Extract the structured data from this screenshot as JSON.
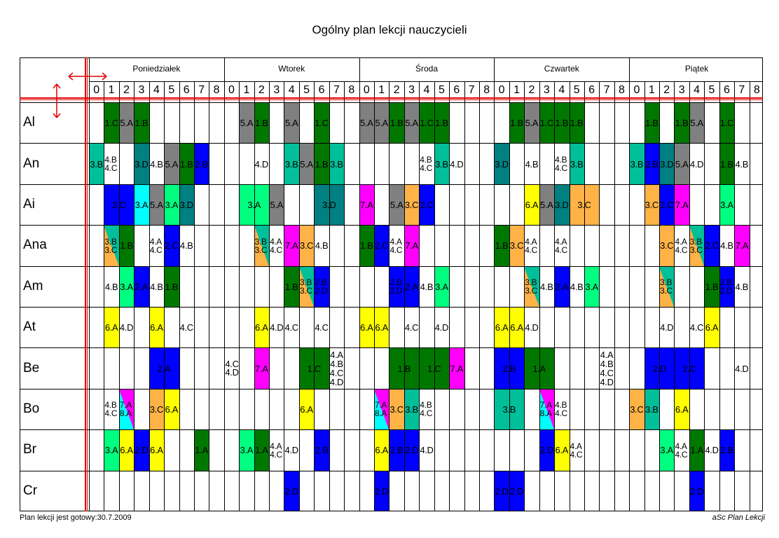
{
  "title": "Ogólny plan lekcji nauczycieli",
  "footer": {
    "left": "Plan lekcji jest gotowy:30.7.2009",
    "right": "aSc Plan Lekcji"
  },
  "days": [
    "Poniedziałek",
    "Wtorek",
    "Środa",
    "Czwartek",
    "Piątek"
  ],
  "periods": [
    "0",
    "1",
    "2",
    "3",
    "4",
    "5",
    "6",
    "7",
    "8"
  ],
  "colors": {
    "G": "#007800",
    "R": "#808080",
    "TL": "#00BF99",
    "T": "#008080",
    "B": "#0000FF",
    "C": "#00FFFF",
    "M": "#FF00FF",
    "Y": "#FFFF00",
    "O": "#FFB347",
    "L": "#00FF80"
  },
  "rows": [
    {
      "teacher": "Al",
      "cells": [
        {
          "s": 1,
          "c": "G",
          "t": "1.C"
        },
        {
          "s": 2,
          "c": "R",
          "t": "5.A"
        },
        {
          "s": 3,
          "c": "G",
          "t": "1.B"
        },
        {
          "s": 10,
          "c": "R",
          "t": "5.A"
        },
        {
          "s": 11,
          "c": "G",
          "t": "1.B"
        },
        {
          "s": 13,
          "c": "R",
          "t": "5.A"
        },
        {
          "s": 15,
          "c": "G",
          "t": "1.C"
        },
        {
          "s": 18,
          "c": "R",
          "t": "5.A"
        },
        {
          "s": 19,
          "c": "R",
          "t": "5.A"
        },
        {
          "s": 20,
          "c": "G",
          "t": "1.B"
        },
        {
          "s": 21,
          "c": "R",
          "t": "5.A"
        },
        {
          "s": 22,
          "c": "G",
          "t": "1.C"
        },
        {
          "s": 23,
          "c": "G",
          "t": "1.B"
        },
        {
          "s": 28,
          "c": "G",
          "t": "1.B"
        },
        {
          "s": 29,
          "c": "R",
          "t": "5.A"
        },
        {
          "s": 30,
          "c": "G",
          "t": "1.C"
        },
        {
          "s": 31,
          "c": "G",
          "t": "1.B"
        },
        {
          "s": 32,
          "c": "G",
          "t": "1.B"
        },
        {
          "s": 37,
          "c": "G",
          "t": "1.B"
        },
        {
          "s": 39,
          "c": "G",
          "t": "1.B"
        },
        {
          "s": 40,
          "c": "R",
          "t": "5.A"
        },
        {
          "s": 42,
          "c": "G",
          "t": "1.C"
        }
      ]
    },
    {
      "teacher": "An",
      "cells": [
        {
          "s": 0,
          "c": "TL",
          "t": "3.B"
        },
        {
          "s": 1,
          "c": "",
          "t": "4.B",
          "t2": "4.C"
        },
        {
          "s": 3,
          "c": "T",
          "t": "3.D"
        },
        {
          "s": 4,
          "c": "",
          "t": "4.B"
        },
        {
          "s": 5,
          "c": "R",
          "t": "5.A"
        },
        {
          "s": 6,
          "c": "G",
          "t": "1.B"
        },
        {
          "s": 7,
          "c": "B",
          "t": "2.B"
        },
        {
          "s": 11,
          "c": "",
          "t": "4.D"
        },
        {
          "s": 13,
          "c": "TL",
          "t": "3.B"
        },
        {
          "s": 14,
          "c": "R",
          "t": "5.A"
        },
        {
          "s": 15,
          "c": "G",
          "t": "1.B"
        },
        {
          "s": 16,
          "c": "TL",
          "t": "3.B"
        },
        {
          "s": 22,
          "c": "",
          "t": "4.B",
          "t2": "4.C"
        },
        {
          "s": 23,
          "c": "TL",
          "t": "3.B"
        },
        {
          "s": 24,
          "c": "",
          "t": "4.D"
        },
        {
          "s": 27,
          "c": "T",
          "t": "3.D"
        },
        {
          "s": 29,
          "c": "",
          "t": "4.B"
        },
        {
          "s": 31,
          "c": "",
          "t": "4.B",
          "t2": "4.C"
        },
        {
          "s": 32,
          "c": "TL",
          "t": "3.B"
        },
        {
          "s": 36,
          "c": "TL",
          "t": "3.B"
        },
        {
          "s": 37,
          "c": "B",
          "t": "2.B"
        },
        {
          "s": 38,
          "c": "T",
          "t": "3.D"
        },
        {
          "s": 39,
          "c": "R",
          "t": "5.A"
        },
        {
          "s": 40,
          "c": "",
          "t": "4.D"
        },
        {
          "s": 42,
          "c": "G",
          "t": "1.B"
        },
        {
          "s": 43,
          "c": "",
          "t": "4.B"
        }
      ]
    },
    {
      "teacher": "Ai",
      "cells": [
        {
          "s": 1,
          "w": 2,
          "c": "B",
          "t": "2.C"
        },
        {
          "s": 3,
          "c": "C",
          "t": "3.A"
        },
        {
          "s": 4,
          "c": "R",
          "t": "5.A"
        },
        {
          "s": 5,
          "c": "L",
          "t": "3.A"
        },
        {
          "s": 6,
          "c": "T",
          "t": "3.D"
        },
        {
          "s": 10,
          "w": 2,
          "c": "L",
          "t": "3.A"
        },
        {
          "s": 12,
          "c": "R",
          "t": "5.A"
        },
        {
          "s": 15,
          "w": 2,
          "c": "T",
          "t": "3.D"
        },
        {
          "s": 18,
          "c": "M",
          "t": "7.A"
        },
        {
          "s": 20,
          "c": "R",
          "t": "5.A"
        },
        {
          "s": 21,
          "c": "O",
          "t": "3.C"
        },
        {
          "s": 22,
          "c": "B",
          "t": "2.C"
        },
        {
          "s": 29,
          "c": "Y",
          "t": "6.A"
        },
        {
          "s": 30,
          "c": "R",
          "t": "5.A"
        },
        {
          "s": 31,
          "c": "T",
          "t": "3.D"
        },
        {
          "s": 32,
          "w": 2,
          "c": "O",
          "t": "3.C"
        },
        {
          "s": 37,
          "c": "O",
          "t": "3.C"
        },
        {
          "s": 38,
          "c": "B",
          "t": "2.C"
        },
        {
          "s": 39,
          "c": "M",
          "t": "7.A"
        },
        {
          "s": 42,
          "c": "L",
          "t": "3.A"
        }
      ]
    },
    {
      "teacher": "Ana",
      "cells": [
        {
          "s": 1,
          "c": "",
          "diag": [
            "TL",
            "O"
          ],
          "t": "3.B",
          "t2": "3.C"
        },
        {
          "s": 2,
          "c": "G",
          "t": "1.B"
        },
        {
          "s": 4,
          "c": "",
          "t": "4.A",
          "t2": "4.C"
        },
        {
          "s": 5,
          "c": "B",
          "t": "2.C"
        },
        {
          "s": 6,
          "c": "",
          "t": "4.B"
        },
        {
          "s": 11,
          "c": "",
          "diag": [
            "TL",
            "O"
          ],
          "t": "3.B",
          "t2": "3.C"
        },
        {
          "s": 12,
          "c": "",
          "t": "4.A",
          "t2": "4.C"
        },
        {
          "s": 13,
          "c": "M",
          "t": "7.A"
        },
        {
          "s": 14,
          "c": "O",
          "t": "3.C"
        },
        {
          "s": 15,
          "c": "",
          "t": "4.B"
        },
        {
          "s": 18,
          "c": "G",
          "t": "1.B"
        },
        {
          "s": 19,
          "c": "B",
          "t": "2.C"
        },
        {
          "s": 20,
          "c": "",
          "t": "4.A",
          "t2": "4.C"
        },
        {
          "s": 21,
          "c": "M",
          "t": "7.A"
        },
        {
          "s": 27,
          "c": "G",
          "t": "1.B"
        },
        {
          "s": 28,
          "c": "O",
          "t": "3.C"
        },
        {
          "s": 29,
          "c": "",
          "t": "4.A",
          "t2": "4.C"
        },
        {
          "s": 31,
          "c": "",
          "t": "4.A",
          "t2": "4.C"
        },
        {
          "s": 38,
          "c": "O",
          "t": "3.C"
        },
        {
          "s": 39,
          "c": "",
          "t": "4.A",
          "t2": "4.C"
        },
        {
          "s": 40,
          "c": "",
          "diag": [
            "TL",
            "O"
          ],
          "t": "3.B",
          "t2": "3.C"
        },
        {
          "s": 41,
          "c": "B",
          "t": "2.C"
        },
        {
          "s": 42,
          "c": "",
          "t": "4.B"
        },
        {
          "s": 43,
          "c": "M",
          "t": "7.A"
        }
      ]
    },
    {
      "teacher": "Am",
      "cells": [
        {
          "s": 1,
          "c": "",
          "t": "4.B"
        },
        {
          "s": 2,
          "c": "L",
          "t": "3.A"
        },
        {
          "s": 3,
          "c": "B",
          "t": "2.A"
        },
        {
          "s": 4,
          "c": "",
          "t": "4.B"
        },
        {
          "s": 5,
          "c": "G",
          "t": "1.B"
        },
        {
          "s": 13,
          "c": "G",
          "t": "1.B"
        },
        {
          "s": 14,
          "c": "",
          "diag": [
            "TL",
            "O"
          ],
          "t": "3.B",
          "t2": "3.C"
        },
        {
          "s": 15,
          "c": "B",
          "t": "2.B",
          "t2": "2.D"
        },
        {
          "s": 20,
          "c": "B",
          "t": "2.B",
          "t2": "2.D"
        },
        {
          "s": 21,
          "c": "B",
          "t": "2.A"
        },
        {
          "s": 22,
          "c": "",
          "t": "4.B"
        },
        {
          "s": 23,
          "c": "L",
          "t": "3.A"
        },
        {
          "s": 29,
          "c": "",
          "diag": [
            "TL",
            "O"
          ],
          "t": "3.B",
          "t2": "3.C"
        },
        {
          "s": 30,
          "c": "",
          "t": "4.B"
        },
        {
          "s": 31,
          "c": "B",
          "t": "2.A"
        },
        {
          "s": 32,
          "c": "",
          "t": "4.B"
        },
        {
          "s": 33,
          "c": "L",
          "t": "3.A"
        },
        {
          "s": 38,
          "c": "",
          "diag": [
            "TL",
            "O"
          ],
          "t": "3.B",
          "t2": "3.C"
        },
        {
          "s": 41,
          "c": "G",
          "t": "1.B"
        },
        {
          "s": 42,
          "c": "B",
          "t": "2.B",
          "t2": "2.D"
        },
        {
          "s": 43,
          "c": "",
          "t": "4.B"
        }
      ]
    },
    {
      "teacher": "At",
      "cells": [
        {
          "s": 1,
          "c": "Y",
          "t": "6.A"
        },
        {
          "s": 2,
          "c": "",
          "t": "4.D"
        },
        {
          "s": 4,
          "c": "Y",
          "t": "6.A"
        },
        {
          "s": 6,
          "c": "",
          "t": "4.C"
        },
        {
          "s": 11,
          "c": "Y",
          "t": "6.A"
        },
        {
          "s": 12,
          "c": "",
          "t": "4.D"
        },
        {
          "s": 13,
          "c": "",
          "t": "4.C"
        },
        {
          "s": 15,
          "c": "",
          "t": "4.C"
        },
        {
          "s": 18,
          "c": "Y",
          "t": "6.A"
        },
        {
          "s": 19,
          "c": "Y",
          "t": "6.A"
        },
        {
          "s": 21,
          "c": "",
          "t": "4.C"
        },
        {
          "s": 23,
          "c": "",
          "t": "4.D"
        },
        {
          "s": 27,
          "c": "Y",
          "t": "6.A"
        },
        {
          "s": 28,
          "c": "Y",
          "t": "6.A"
        },
        {
          "s": 29,
          "c": "",
          "t": "4.D"
        },
        {
          "s": 38,
          "c": "",
          "t": "4.D"
        },
        {
          "s": 40,
          "c": "",
          "t": "4.C"
        },
        {
          "s": 41,
          "c": "Y",
          "t": "6.A"
        }
      ]
    },
    {
      "teacher": "Be",
      "cells": [
        {
          "s": 4,
          "w": 2,
          "c": "B",
          "t": "2.A"
        },
        {
          "s": 9,
          "c": "",
          "t": "4.C",
          "t2": "4.D",
          "big": true
        },
        {
          "s": 11,
          "c": "M",
          "t": "7.A"
        },
        {
          "s": 14,
          "w": 2,
          "c": "G",
          "t": "1.C"
        },
        {
          "s": 16,
          "c": "",
          "lines": [
            "4.A",
            "4.B",
            "4.C",
            "4.D"
          ],
          "big": true
        },
        {
          "s": 20,
          "w": 2,
          "c": "G",
          "t": "1.B"
        },
        {
          "s": 22,
          "w": 2,
          "c": "G",
          "t": "1.C"
        },
        {
          "s": 24,
          "c": "M",
          "t": "7.A"
        },
        {
          "s": 27,
          "w": 2,
          "c": "B",
          "t": "2.B"
        },
        {
          "s": 29,
          "w": 2,
          "c": "G",
          "t": "1.A"
        },
        {
          "s": 34,
          "c": "",
          "lines": [
            "4.A",
            "4.B",
            "4.C",
            "4.D"
          ],
          "big": true
        },
        {
          "s": 37,
          "w": 2,
          "c": "B",
          "t": "2.D"
        },
        {
          "s": 39,
          "w": 2,
          "c": "B",
          "t": "2.C"
        },
        {
          "s": 43,
          "c": "",
          "t": "4.D"
        }
      ]
    },
    {
      "teacher": "Bo",
      "cells": [
        {
          "s": 1,
          "c": "",
          "t": "4.B",
          "t2": "4.C"
        },
        {
          "s": 2,
          "c": "",
          "diag": [
            "M",
            "C"
          ],
          "t": "7.A",
          "t2": "8.A"
        },
        {
          "s": 4,
          "c": "O",
          "t": "3.C"
        },
        {
          "s": 5,
          "c": "Y",
          "t": "6.A"
        },
        {
          "s": 14,
          "c": "Y",
          "t": "6.A"
        },
        {
          "s": 19,
          "c": "",
          "diag": [
            "M",
            "C"
          ],
          "t": "7.A",
          "t2": "8.A"
        },
        {
          "s": 20,
          "c": "O",
          "t": "3.C"
        },
        {
          "s": 21,
          "c": "TL",
          "t": "3.B"
        },
        {
          "s": 22,
          "c": "",
          "t": "4.B",
          "t2": "4.C"
        },
        {
          "s": 27,
          "w": 2,
          "c": "TL",
          "t": "3.B"
        },
        {
          "s": 30,
          "c": "",
          "diag": [
            "M",
            "C"
          ],
          "t": "7.A",
          "t2": "8.A"
        },
        {
          "s": 31,
          "c": "",
          "t": "4.B",
          "t2": "4.C"
        },
        {
          "s": 36,
          "c": "O",
          "t": "3.C"
        },
        {
          "s": 37,
          "c": "TL",
          "t": "3.B"
        },
        {
          "s": 39,
          "c": "Y",
          "t": "6.A"
        }
      ]
    },
    {
      "teacher": "Br",
      "cells": [
        {
          "s": 1,
          "c": "L",
          "t": "3.A"
        },
        {
          "s": 2,
          "c": "Y",
          "t": "6.A"
        },
        {
          "s": 3,
          "c": "B",
          "t": "2.D"
        },
        {
          "s": 4,
          "c": "Y",
          "t": "6.A"
        },
        {
          "s": 7,
          "c": "G",
          "t": "1.A"
        },
        {
          "s": 10,
          "c": "L",
          "t": "3.A"
        },
        {
          "s": 11,
          "c": "G",
          "t": "1.A"
        },
        {
          "s": 12,
          "c": "",
          "t": "4.A",
          "t2": "4.C"
        },
        {
          "s": 13,
          "c": "",
          "t": "4.D"
        },
        {
          "s": 15,
          "c": "B",
          "t": "2.B"
        },
        {
          "s": 19,
          "c": "Y",
          "t": "6.A"
        },
        {
          "s": 20,
          "c": "B",
          "t": "2.B"
        },
        {
          "s": 21,
          "c": "B",
          "t": "2.D"
        },
        {
          "s": 22,
          "c": "",
          "t": "4.D"
        },
        {
          "s": 30,
          "c": "B",
          "t": "2.D"
        },
        {
          "s": 31,
          "c": "Y",
          "t": "6.A"
        },
        {
          "s": 32,
          "c": "",
          "t": "4.A",
          "t2": "4.C"
        },
        {
          "s": 38,
          "c": "L",
          "t": "3.A"
        },
        {
          "s": 39,
          "c": "",
          "t": "4.A",
          "t2": "4.C"
        },
        {
          "s": 40,
          "c": "G",
          "t": "1.A"
        },
        {
          "s": 41,
          "c": "",
          "t": "4.D"
        },
        {
          "s": 42,
          "c": "B",
          "t": "2.B"
        }
      ]
    },
    {
      "teacher": "Cr",
      "cells": [
        {
          "s": 13,
          "c": "B",
          "t": "2.D"
        },
        {
          "s": 19,
          "c": "B",
          "t": "2.D"
        },
        {
          "s": 27,
          "c": "B",
          "t": "2.D"
        },
        {
          "s": 28,
          "c": "B",
          "t": "2.D"
        },
        {
          "s": 40,
          "c": "B",
          "t": "2.D"
        }
      ]
    }
  ]
}
